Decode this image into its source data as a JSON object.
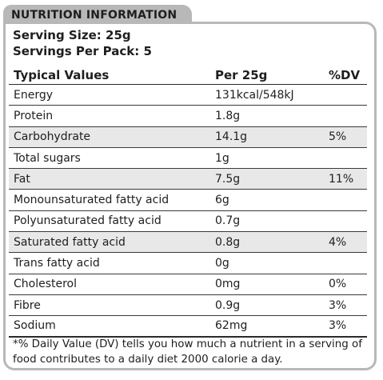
{
  "header": {
    "title": "NUTRITION INFORMATION"
  },
  "serving": {
    "size": "Serving Size: 25g",
    "per_pack": "Servings Per Pack: 5"
  },
  "table": {
    "columns": [
      "Typical Values",
      "Per 25g",
      "%DV"
    ],
    "rows": [
      {
        "name": "Energy",
        "amount": "131kcal/548kJ",
        "dv": ""
      },
      {
        "name": "Protein",
        "amount": "1.8g",
        "dv": ""
      },
      {
        "name": "Carbohydrate",
        "amount": "14.1g",
        "dv": "5%"
      },
      {
        "name": "Total sugars",
        "amount": "1g",
        "dv": ""
      },
      {
        "name": "Fat",
        "amount": "7.5g",
        "dv": "11%"
      },
      {
        "name": "Monounsaturated fatty acid",
        "amount": "6g",
        "dv": ""
      },
      {
        "name": "Polyunsaturated fatty acid",
        "amount": "0.7g",
        "dv": ""
      },
      {
        "name": "Saturated fatty acid",
        "amount": "0.8g",
        "dv": "4%"
      },
      {
        "name": "Trans fatty acid",
        "amount": "0g",
        "dv": ""
      },
      {
        "name": "Cholesterol",
        "amount": "0mg",
        "dv": "0%"
      },
      {
        "name": "Fibre",
        "amount": "0.9g",
        "dv": "3%"
      },
      {
        "name": "Sodium",
        "amount": "62mg",
        "dv": "3%"
      }
    ]
  },
  "footnote": "*% Daily Value (DV) tells you how much a nutrient in a serving of food contributes to a daily diet 2000 calorie a day.",
  "colors": {
    "tab_gray": "#b8b8b8",
    "row_alt": "#e8e8e8",
    "text": "#1e1e1e"
  }
}
